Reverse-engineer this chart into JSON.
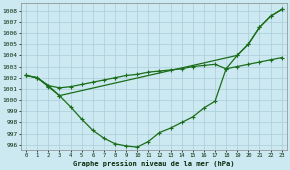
{
  "title": "Graphe pression niveau de la mer (hPa)",
  "background_color": "#cce8f0",
  "grid_color": "#aaccd8",
  "line_color": "#1a6e1a",
  "xlim": [
    -0.5,
    23.5
  ],
  "ylim": [
    995.5,
    1008.7
  ],
  "yticks": [
    996,
    997,
    998,
    999,
    1000,
    1001,
    1002,
    1003,
    1004,
    1005,
    1006,
    1007,
    1008
  ],
  "xticks": [
    0,
    1,
    2,
    3,
    4,
    5,
    6,
    7,
    8,
    9,
    10,
    11,
    12,
    13,
    14,
    15,
    16,
    17,
    18,
    19,
    20,
    21,
    22,
    23
  ],
  "line1_x": [
    0,
    1,
    2,
    3,
    4,
    5,
    6,
    7,
    8,
    9,
    10,
    11,
    12,
    13,
    14,
    15,
    16,
    17,
    18,
    19,
    20,
    21,
    22,
    23
  ],
  "line1_y": [
    1002.2,
    1002.0,
    1001.2,
    1000.4,
    999.4,
    998.3,
    997.3,
    996.6,
    996.1,
    995.9,
    995.8,
    996.3,
    997.1,
    997.5,
    998.0,
    998.5,
    999.3,
    999.9,
    1002.8,
    1004.0,
    1005.0,
    1006.5,
    1007.5,
    1008.1
  ],
  "line2_x": [
    0,
    1,
    2,
    3,
    4,
    5,
    6,
    7,
    8,
    9,
    10,
    11,
    12,
    13,
    14,
    15,
    16,
    17,
    18,
    19,
    20,
    21,
    22,
    23
  ],
  "line2_y": [
    1002.2,
    1002.0,
    1001.3,
    1001.1,
    1001.2,
    1001.4,
    1001.6,
    1001.8,
    1002.0,
    1002.2,
    1002.3,
    1002.5,
    1002.6,
    1002.7,
    1002.8,
    1003.0,
    1003.1,
    1003.2,
    1002.8,
    1003.0,
    1003.2,
    1003.4,
    1003.6,
    1003.8
  ],
  "line3_x": [
    0,
    1,
    2,
    3,
    19,
    20,
    21,
    22,
    23
  ],
  "line3_y": [
    1002.2,
    1002.0,
    1001.3,
    1000.4,
    1004.0,
    1005.0,
    1006.5,
    1007.5,
    1008.1
  ]
}
